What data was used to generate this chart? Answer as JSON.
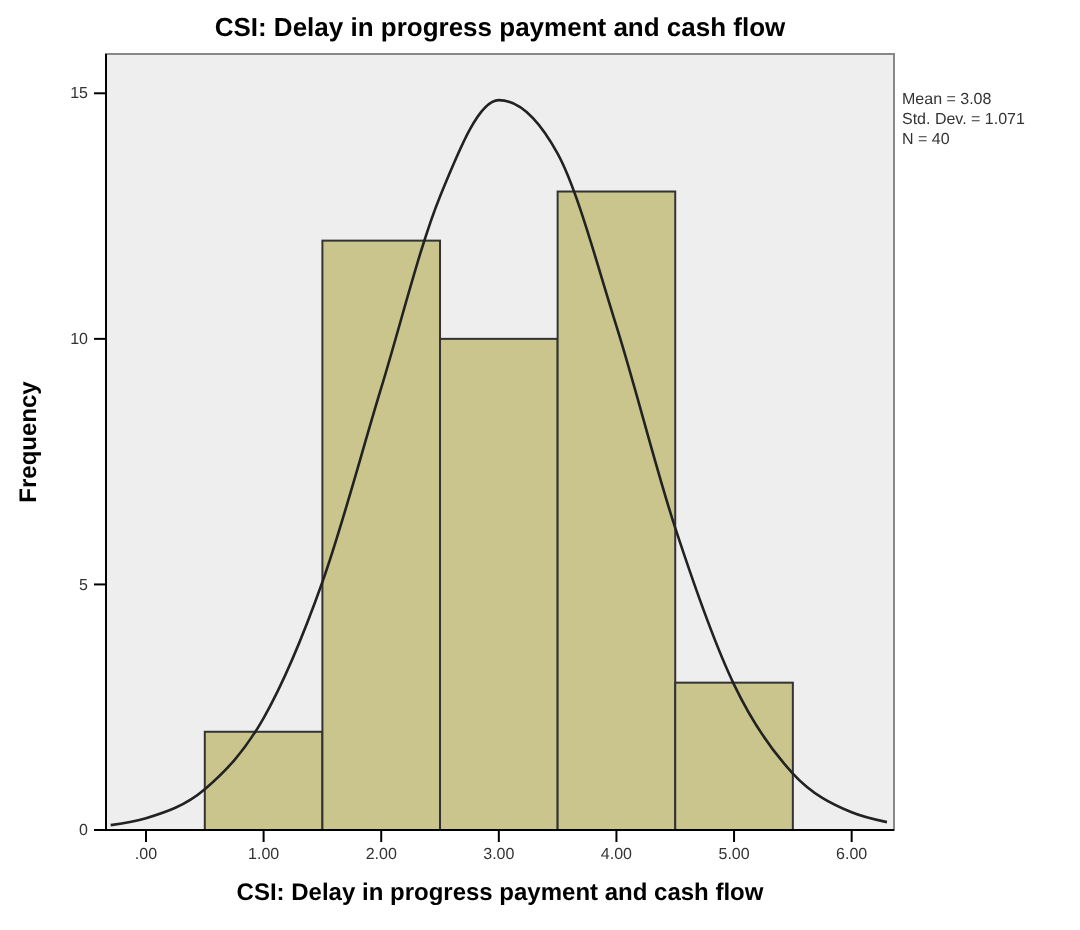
{
  "chart_data": {
    "type": "histogram",
    "title": "CSI: Delay in progress payment and cash flow",
    "xlabel": "CSI: Delay in progress payment and cash flow",
    "ylabel": "Frequency",
    "bins": [
      0.5,
      1.5,
      2.5,
      3.5,
      4.5,
      5.5
    ],
    "values": [
      2,
      12,
      10,
      13,
      3
    ],
    "color": "#c9c58c",
    "series": [
      {
        "type": "line",
        "color": "#222222",
        "x": [
          -0.3,
          0,
          0.5,
          1,
          1.5,
          2,
          2.5,
          3,
          3.5,
          4,
          4.5,
          5,
          5.5,
          6,
          6.3
        ],
        "values": [
          0.1,
          0.24,
          0.83,
          2.28,
          5.05,
          9.0,
          12.9,
          14.86,
          13.77,
          10.26,
          6.15,
          2.96,
          1.15,
          0.36,
          0.16
        ]
      }
    ],
    "xlim": [
      -0.34,
      6.36
    ],
    "ylim": [
      0,
      15.8
    ],
    "xticks": [
      {
        "value": 0,
        "label": ".00"
      },
      {
        "value": 1,
        "label": "1.00"
      },
      {
        "value": 2,
        "label": "2.00"
      },
      {
        "value": 3,
        "label": "3.00"
      },
      {
        "value": 4,
        "label": "4.00"
      },
      {
        "value": 5,
        "label": "5.00"
      },
      {
        "value": 6,
        "label": "6.00"
      }
    ],
    "yticks": [
      0,
      5,
      10,
      15
    ],
    "grid": false,
    "marker": "none",
    "annotations": [
      "Mean = 3.08",
      "Std. Dev. = 1.071",
      "N = 40"
    ]
  }
}
